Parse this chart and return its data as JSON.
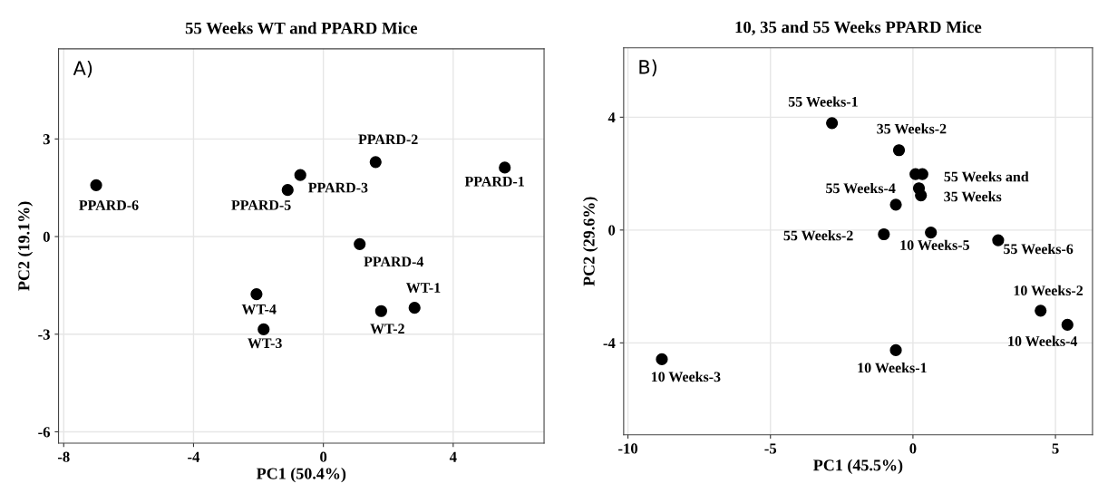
{
  "chart_data": [
    {
      "type": "scatter",
      "title": "55 Weeks WT and PPARD Mice",
      "xlabel": "PC1 (50.4%)",
      "ylabel": "PC2 (19.1%)",
      "series": [
        {
          "color": "#000000",
          "x": [
            -7.0,
            -0.71,
            -1.1,
            1.61,
            5.59,
            1.12,
            -2.06,
            -1.84,
            1.78,
            2.81
          ],
          "values": [
            1.58,
            1.89,
            1.43,
            2.29,
            2.12,
            -0.23,
            -1.77,
            -2.85,
            -2.29,
            -2.19
          ]
        }
      ],
      "xlim": [
        -8.16,
        6.8
      ],
      "xticks": [
        -8,
        -4,
        0,
        4
      ],
      "ylim": [
        -6.35,
        5.77
      ],
      "yticks": [
        -6,
        -3,
        0,
        3
      ],
      "grid": true,
      "marker": "circle",
      "annotations": [
        "A)",
        {
          "text": "PPARD-6",
          "x": -7.0,
          "y": 1.58
        },
        {
          "text": "PPARD-3",
          "x": -0.71,
          "y": 1.89
        },
        {
          "text": "PPARD-5",
          "x": -1.1,
          "y": 1.43
        },
        {
          "text": "PPARD-2",
          "x": 1.61,
          "y": 2.29
        },
        {
          "text": "PPARD-1",
          "x": 5.59,
          "y": 2.12
        },
        {
          "text": "PPARD-4",
          "x": 1.12,
          "y": -0.23
        },
        {
          "text": "WT-4",
          "x": -2.06,
          "y": -1.77
        },
        {
          "text": "WT-3",
          "x": -1.84,
          "y": -2.85
        },
        {
          "text": "WT-2",
          "x": 1.78,
          "y": -2.29
        },
        {
          "text": "WT-1",
          "x": 2.81,
          "y": -2.19
        }
      ]
    },
    {
      "type": "scatter",
      "title": "10, 35 and 55 Weeks PPARD Mice",
      "xlabel": "PC1 (45.5%)",
      "ylabel": "PC2 (29.6%)",
      "series": [
        {
          "color": "#000000",
          "x": [
            -2.84,
            -0.49,
            0.09,
            0.33,
            0.21,
            0.28,
            -0.6,
            -1.02,
            0.63,
            2.99,
            4.48,
            5.42,
            -0.6,
            -8.81
          ],
          "values": [
            3.79,
            2.83,
            1.98,
            1.98,
            1.48,
            1.23,
            0.9,
            -0.15,
            -0.09,
            -0.36,
            -2.86,
            -3.36,
            -4.26,
            -4.58
          ]
        }
      ],
      "xlim": [
        -10.15,
        6.3
      ],
      "xticks": [
        -10,
        -5,
        0,
        5
      ],
      "ylim": [
        -7.26,
        6.46
      ],
      "yticks": [
        -4,
        0,
        4
      ],
      "grid": true,
      "marker": "circle",
      "annotations": [
        "B)",
        {
          "text": "55 Weeks-1",
          "x": -2.84,
          "y": 3.79
        },
        {
          "text": "35 Weeks-2",
          "x": -0.49,
          "y": 2.83
        },
        {
          "text": "55 Weeks and",
          "x": 0.33,
          "y": 1.98
        },
        {
          "text": "35 Weeks",
          "x": 0.28,
          "y": 1.23
        },
        {
          "text": "55 Weeks-4",
          "x": -0.6,
          "y": 0.9
        },
        {
          "text": "55 Weeks-2",
          "x": -1.02,
          "y": -0.15
        },
        {
          "text": "10 Weeks-5",
          "x": 0.63,
          "y": -0.09
        },
        {
          "text": "55 Weeks-6",
          "x": 2.99,
          "y": -0.36
        },
        {
          "text": "10 Weeks-2",
          "x": 4.48,
          "y": -2.86
        },
        {
          "text": "10 Weeks-4",
          "x": 5.42,
          "y": -3.36
        },
        {
          "text": "10 Weeks-1",
          "x": -0.6,
          "y": -4.26
        },
        {
          "text": "10 Weeks-3",
          "x": -8.81,
          "y": -4.58
        }
      ]
    }
  ]
}
